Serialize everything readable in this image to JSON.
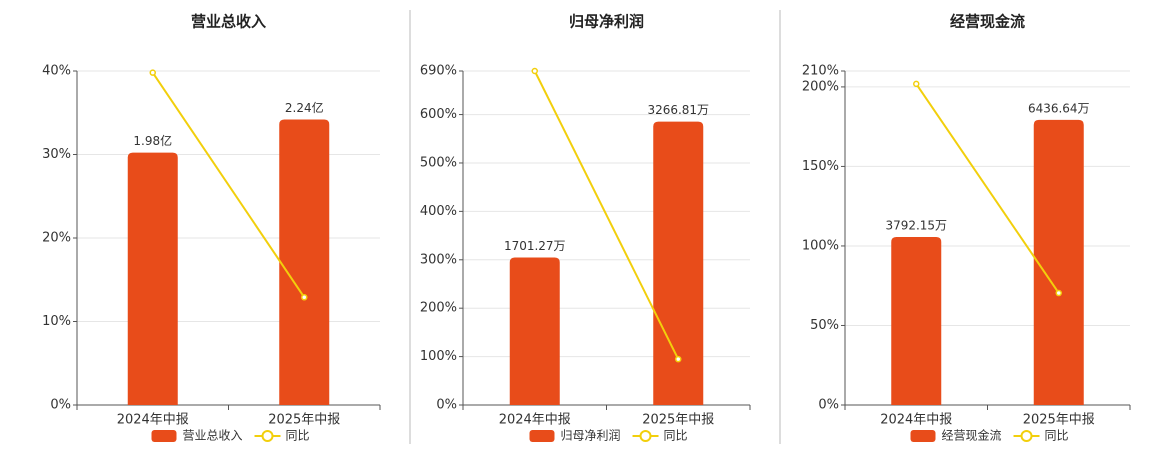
{
  "chart_data": [
    {
      "type": "combo",
      "title": "营业总收入",
      "categories": [
        "2024年中报",
        "2025年中报"
      ],
      "series": [
        {
          "name": "营业总收入",
          "color": "#e84c1a",
          "axis": "y2",
          "values": [
            1.98,
            2.24
          ],
          "value_labels": [
            "1.98亿",
            "2.24亿"
          ]
        },
        {
          "name": "同比",
          "color": "#f2cf0c",
          "values": [
            39.8,
            12.9
          ]
        }
      ],
      "ylim": [
        0,
        40
      ],
      "yticks": [
        {
          "value": 0,
          "label": "0%"
        },
        {
          "value": 10,
          "label": "10%"
        },
        {
          "value": 20,
          "label": "20%"
        },
        {
          "value": 30,
          "label": "30%"
        },
        {
          "value": 40,
          "label": "40%"
        }
      ],
      "y2lim": [
        0,
        2.62
      ],
      "grid": true
    },
    {
      "type": "combo",
      "title": "归母净利润",
      "categories": [
        "2024年中报",
        "2025年中报"
      ],
      "series": [
        {
          "name": "归母净利润",
          "color": "#e84c1a",
          "axis": "y2",
          "values": [
            1701.27,
            3266.81
          ],
          "value_labels": [
            "1701.27万",
            "3266.81万"
          ]
        },
        {
          "name": "同比",
          "color": "#f2cf0c",
          "values": [
            690,
            94.7
          ]
        }
      ],
      "ylim": [
        0,
        690
      ],
      "yticks": [
        {
          "value": 0,
          "label": "0%"
        },
        {
          "value": 100,
          "label": "100%"
        },
        {
          "value": 200,
          "label": "200%"
        },
        {
          "value": 300,
          "label": "300%"
        },
        {
          "value": 400,
          "label": "400%"
        },
        {
          "value": 500,
          "label": "500%"
        },
        {
          "value": 600,
          "label": "600%"
        },
        {
          "value": 690,
          "label": "690%"
        }
      ],
      "y2lim": [
        0,
        3851
      ],
      "grid": true
    },
    {
      "type": "combo",
      "title": "经营现金流",
      "categories": [
        "2024年中报",
        "2025年中报"
      ],
      "series": [
        {
          "name": "经营现金流",
          "color": "#e84c1a",
          "axis": "y2",
          "values": [
            3792.15,
            6436.64
          ],
          "value_labels": [
            "3792.15万",
            "6436.64万"
          ]
        },
        {
          "name": "同比",
          "color": "#f2cf0c",
          "values": [
            201.9,
            70.4
          ]
        }
      ],
      "ylim": [
        0,
        210
      ],
      "yticks": [
        {
          "value": 0,
          "label": "0%"
        },
        {
          "value": 50,
          "label": "50%"
        },
        {
          "value": 100,
          "label": "100%"
        },
        {
          "value": 150,
          "label": "150%"
        },
        {
          "value": 200,
          "label": "200%"
        },
        {
          "value": 210,
          "label": "210%"
        }
      ],
      "y2lim": [
        0,
        7539
      ],
      "grid": true
    }
  ]
}
